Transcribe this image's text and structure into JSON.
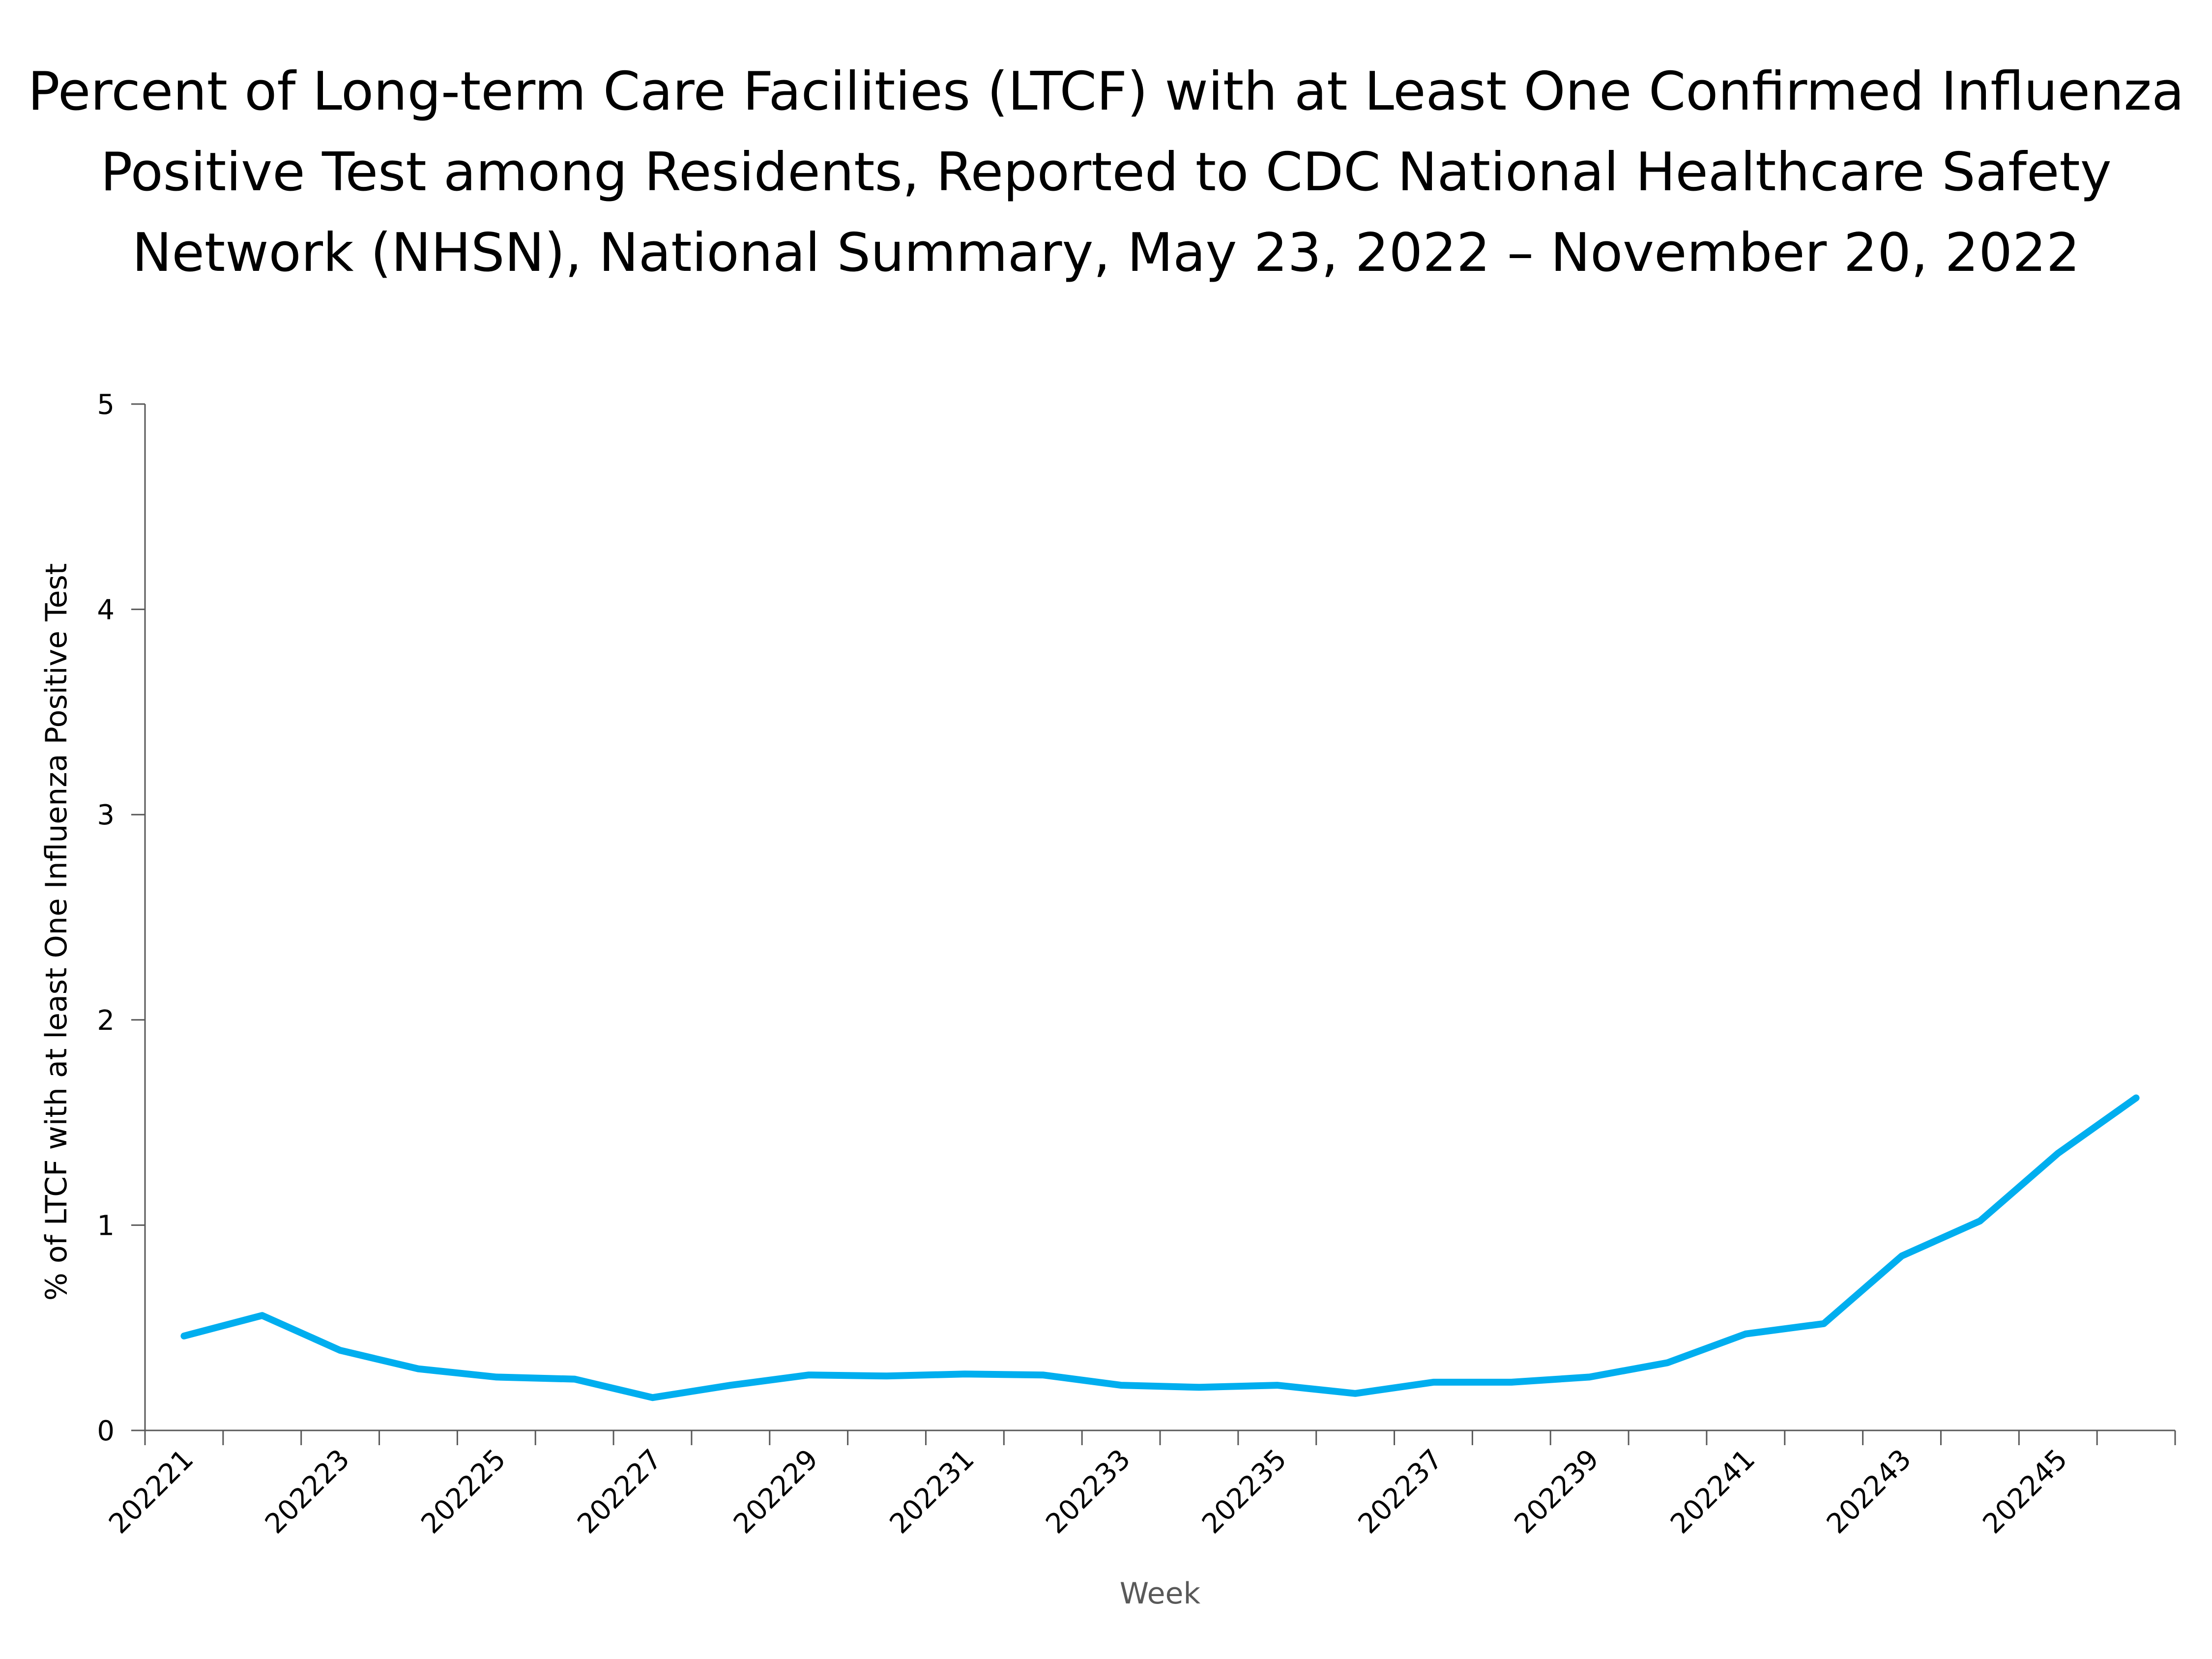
{
  "chart_data": {
    "type": "line",
    "title_lines": [
      "Percent of Long-term Care Facilities (LTCF) with at Least One Confirmed Influenza",
      "Positive Test among Residents, Reported to CDC National Healthcare Safety",
      "Network (NHSN), National Summary, May 23, 2022 – November 20, 2022"
    ],
    "xlabel": "Week",
    "ylabel": "% of LTCF with at least One Influenza Positive Test",
    "ylim": [
      0,
      5
    ],
    "yticks": [
      0,
      1,
      2,
      3,
      4,
      5
    ],
    "grid": false,
    "categories": [
      "202221",
      "202222",
      "202223",
      "202224",
      "202225",
      "202226",
      "202227",
      "202228",
      "202229",
      "202230",
      "202231",
      "202232",
      "202233",
      "202234",
      "202235",
      "202236",
      "202237",
      "202238",
      "202239",
      "202240",
      "202241",
      "202242",
      "202243",
      "202244",
      "202245",
      "202246"
    ],
    "x_tick_labels": [
      "202221",
      "202223",
      "202225",
      "202227",
      "202229",
      "202231",
      "202233",
      "202235",
      "202237",
      "202239",
      "202241",
      "202243",
      "202245"
    ],
    "series": [
      {
        "name": "% of LTCF with at least One Influenza Positive Test",
        "color": "#00AEEF",
        "values": [
          0.46,
          0.56,
          0.39,
          0.3,
          0.26,
          0.25,
          0.16,
          0.22,
          0.27,
          0.265,
          0.275,
          0.27,
          0.22,
          0.21,
          0.22,
          0.18,
          0.235,
          0.235,
          0.26,
          0.33,
          0.47,
          0.52,
          0.85,
          1.02,
          1.35,
          1.62
        ]
      }
    ]
  }
}
